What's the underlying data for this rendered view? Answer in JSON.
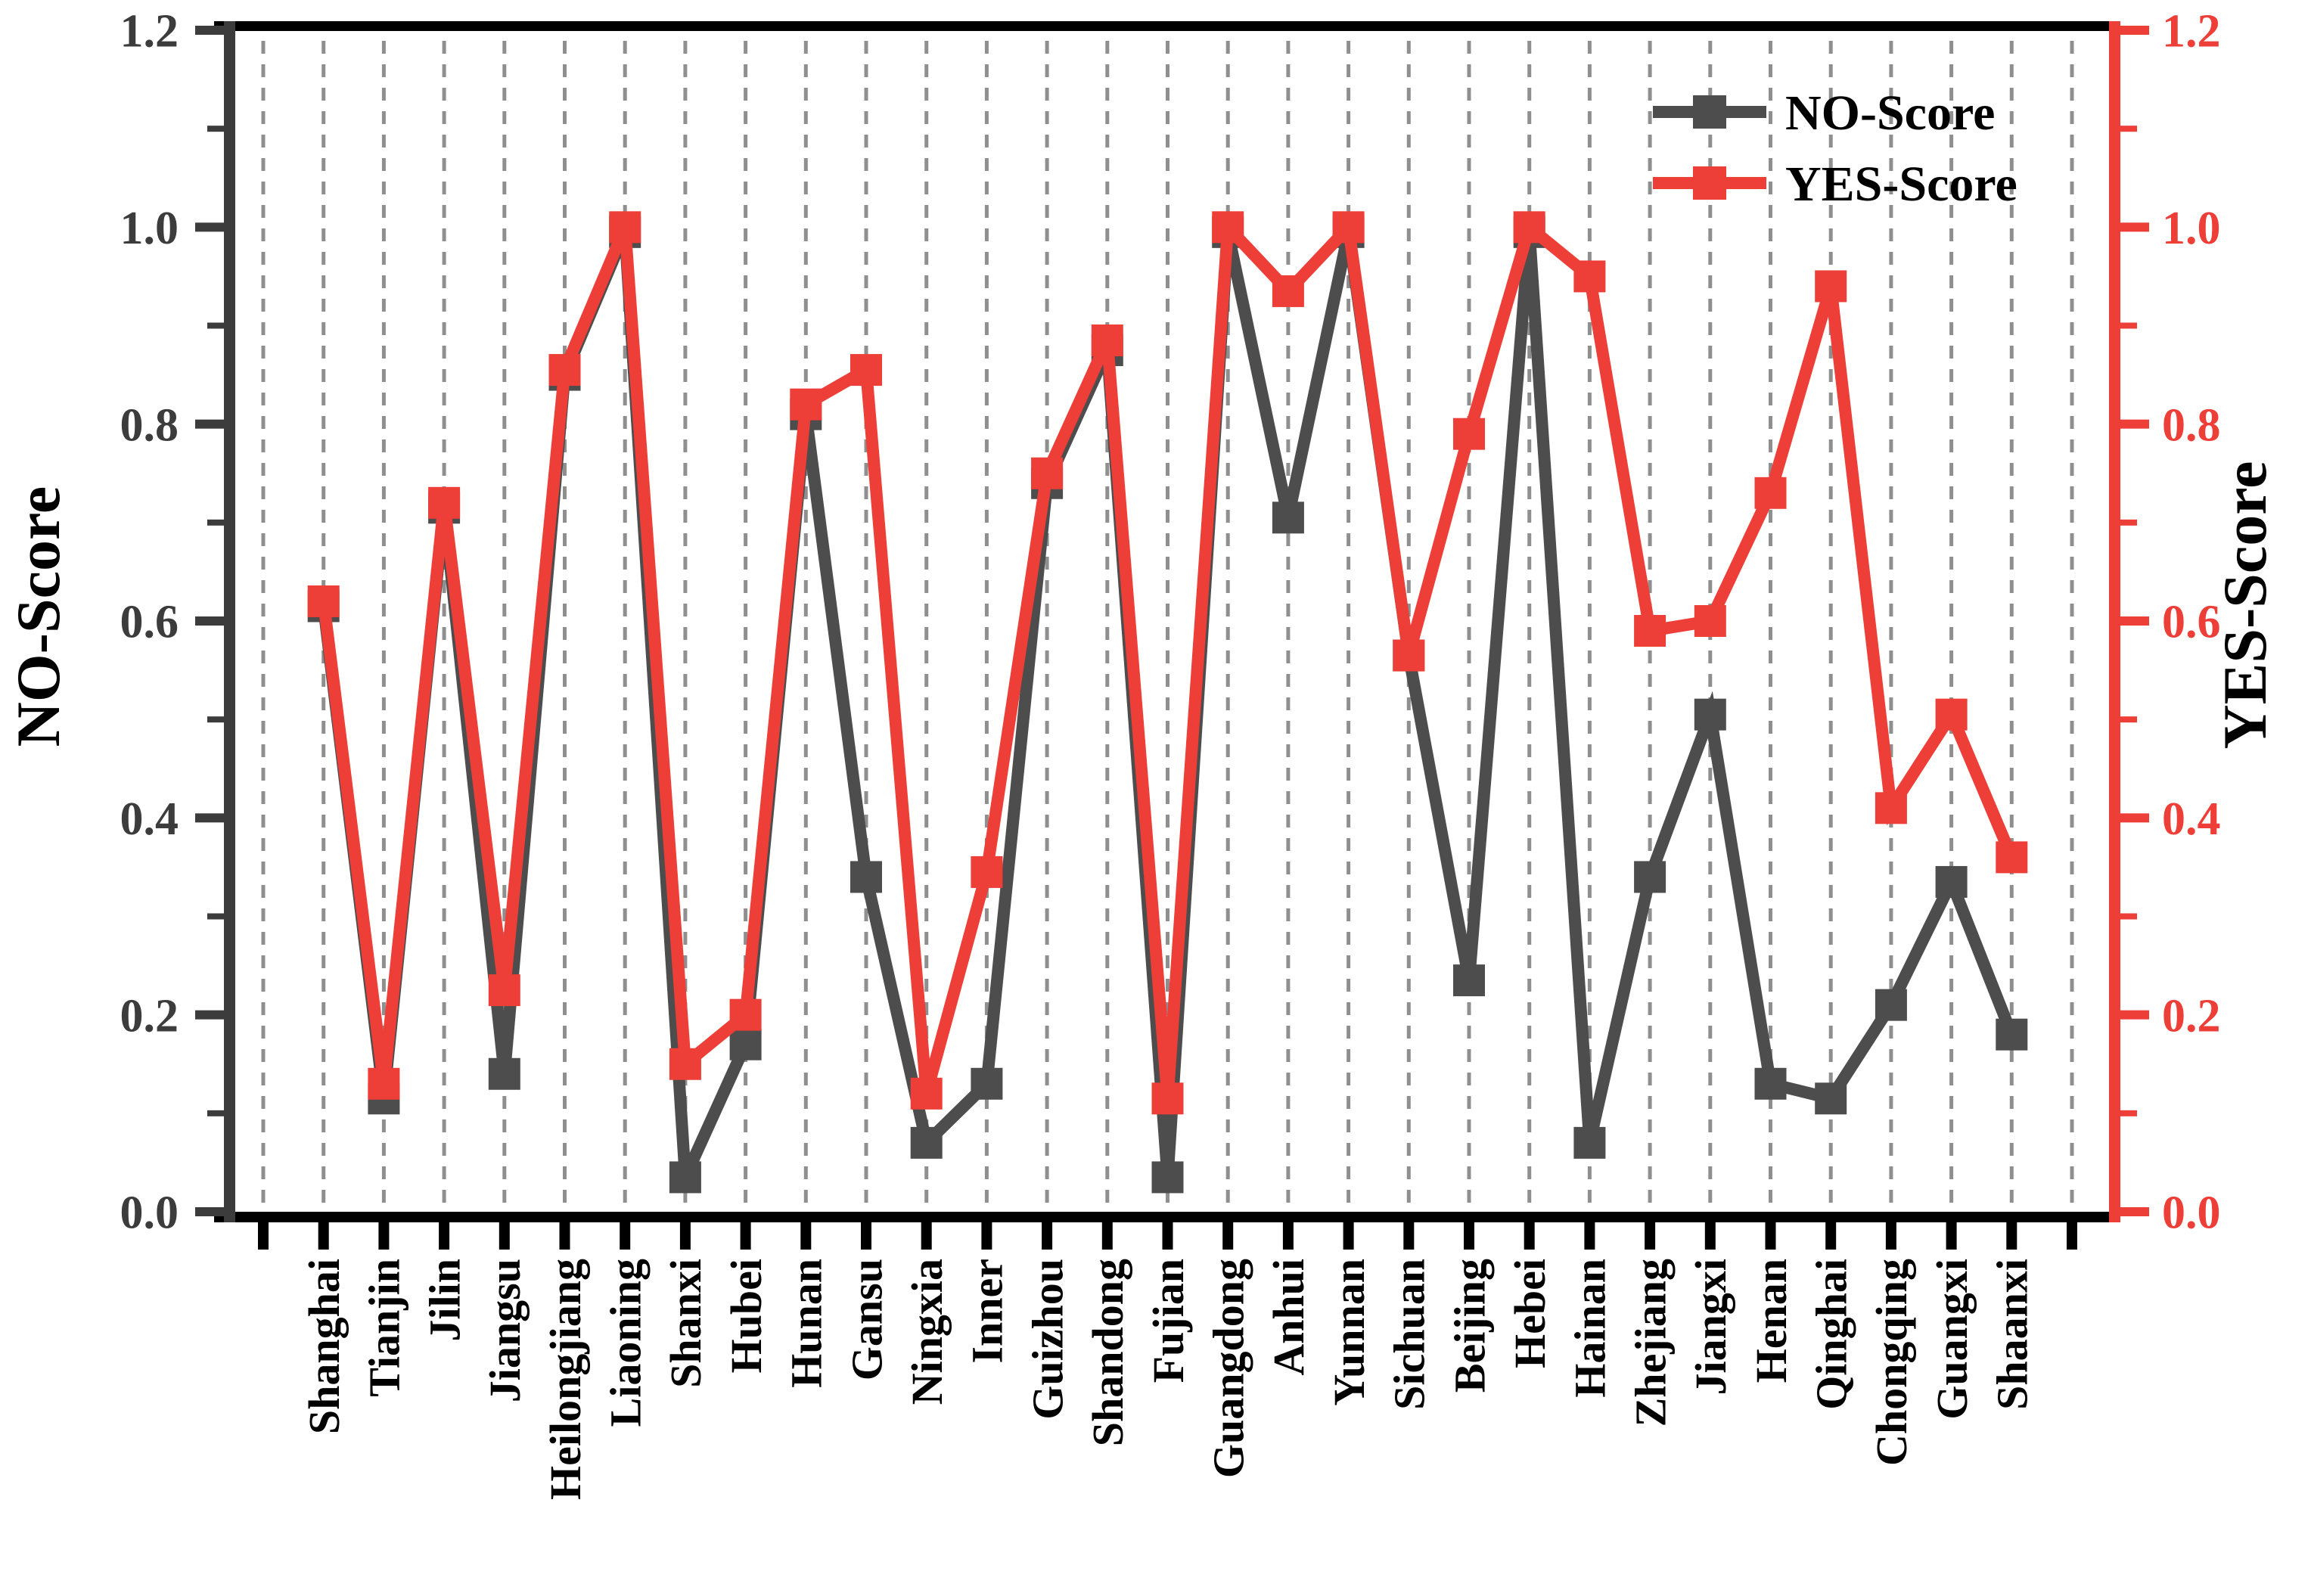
{
  "chart_data": {
    "type": "line",
    "title": "",
    "categories": [
      "Shanghai",
      "Tianjin",
      "Jilin",
      "Jiangsu",
      "Heilongjiang",
      "Liaoning",
      "Shanxi",
      "Hubei",
      "Hunan",
      "Gansu",
      "Ningxia",
      "Inner",
      "Guizhou",
      "Shandong",
      "Fujian",
      "Guangdong",
      "Anhui",
      "Yunnan",
      "Sichuan",
      "Beijing",
      "Hebei",
      "Hainan",
      "Zhejiang",
      "Jiangxi",
      "Henan",
      "Qinghai",
      "Chongqing",
      "Guangxi",
      "Shaanxi"
    ],
    "series": [
      {
        "name": "NO-Score",
        "color": "#4d4d4d",
        "marker": "square",
        "values": [
          0.615,
          0.115,
          0.715,
          0.14,
          0.85,
          0.995,
          0.035,
          0.17,
          0.81,
          0.34,
          0.07,
          0.13,
          0.74,
          0.875,
          0.035,
          0.995,
          0.705,
          0.995,
          0.565,
          0.235,
          0.995,
          0.07,
          0.34,
          0.505,
          0.13,
          0.115,
          0.21,
          0.335,
          0.18
        ]
      },
      {
        "name": "YES-Score",
        "color": "#ee3e38",
        "marker": "square",
        "values": [
          0.62,
          0.13,
          0.72,
          0.225,
          0.855,
          1.0,
          0.15,
          0.2,
          0.82,
          0.855,
          0.12,
          0.345,
          0.75,
          0.885,
          0.115,
          1.0,
          0.935,
          1.0,
          0.565,
          0.79,
          1.0,
          0.95,
          0.59,
          0.6,
          0.73,
          0.94,
          0.41,
          0.505,
          0.36
        ]
      }
    ],
    "left_axis": {
      "title": "NO-Score",
      "color": "#3c3c3c",
      "tick_labels": [
        "0.0",
        "0.2",
        "0.4",
        "0.6",
        "0.8",
        "1.0",
        "1.2"
      ],
      "range": [
        0.0,
        1.2
      ],
      "minor_step": 0.1
    },
    "right_axis": {
      "title": "YES-Score",
      "color": "#ee3e38",
      "tick_labels": [
        "0.0",
        "0.2",
        "0.4",
        "0.6",
        "0.8",
        "1.0",
        "1.2"
      ],
      "range": [
        0.0,
        1.2
      ],
      "minor_step": 0.1
    },
    "legend": {
      "position": "top-right-inside",
      "entries": [
        "NO-Score",
        "YES-Score"
      ]
    },
    "grid": {
      "vertical_dashed": true,
      "color": "#8f8f8f",
      "extra_empty_gridline_each_end": true
    },
    "border_color": "#000000",
    "background": "#ffffff"
  }
}
